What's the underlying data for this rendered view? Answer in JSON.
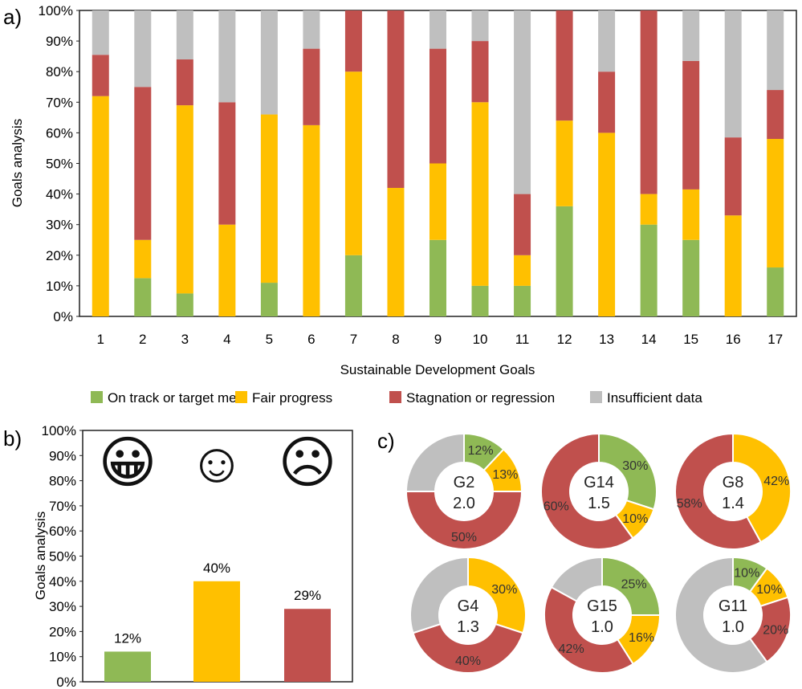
{
  "colors": {
    "on_track": "#8fb955",
    "fair": "#ffc000",
    "stagnation": "#c0504d",
    "insufficient": "#bfbfbf",
    "axis": "#222222"
  },
  "panel_labels": {
    "a": "a)",
    "b": "b)",
    "c": "c)"
  },
  "legend": [
    {
      "name": "On track or target met",
      "color_key": "on_track"
    },
    {
      "name": "Fair progress",
      "color_key": "fair"
    },
    {
      "name": "Stagnation or regression",
      "color_key": "stagnation"
    },
    {
      "name": "Insufficient data",
      "color_key": "insufficient"
    }
  ],
  "chart_data": [
    {
      "id": "a",
      "type": "bar",
      "stacked": true,
      "ylabel": "Goals analysis",
      "xlabel": "Sustainable Development Goals",
      "ylim": [
        0,
        100
      ],
      "yticks": [
        "0%",
        "10%",
        "20%",
        "30%",
        "40%",
        "50%",
        "60%",
        "70%",
        "80%",
        "90%",
        "100%"
      ],
      "categories": [
        "1",
        "2",
        "3",
        "4",
        "5",
        "6",
        "7",
        "8",
        "9",
        "10",
        "11",
        "12",
        "13",
        "14",
        "15",
        "16",
        "17"
      ],
      "series": [
        {
          "name": "On track or target met",
          "values": [
            0,
            12.5,
            7.5,
            0,
            11,
            0,
            20,
            0,
            25,
            10,
            10,
            36,
            0,
            30,
            25,
            0,
            16
          ]
        },
        {
          "name": "Fair progress",
          "values": [
            72,
            12.5,
            61.5,
            30,
            55,
            62.5,
            60,
            42,
            25,
            60,
            10,
            28,
            60,
            10,
            16.5,
            33,
            42
          ]
        },
        {
          "name": "Stagnation or regression",
          "values": [
            13.5,
            50,
            15,
            40,
            0,
            25,
            20,
            58,
            37.5,
            20,
            20,
            36,
            20,
            60,
            42,
            25.5,
            16
          ]
        },
        {
          "name": "Insufficient data",
          "values": [
            14.5,
            25,
            16,
            30,
            34,
            12.5,
            0,
            0,
            12.5,
            10,
            60,
            0,
            20,
            0,
            16.5,
            41.5,
            26
          ]
        }
      ]
    },
    {
      "id": "b",
      "type": "bar",
      "ylabel": "Goals analysis",
      "ylim": [
        0,
        100
      ],
      "yticks": [
        "0%",
        "10%",
        "20%",
        "30%",
        "40%",
        "50%",
        "60%",
        "70%",
        "80%",
        "90%",
        "100%"
      ],
      "categories": [
        "On track or target met",
        "Fair progress",
        "Stagnation or regression"
      ],
      "values": [
        12,
        40,
        29
      ],
      "data_labels": [
        "12%",
        "40%",
        "29%"
      ],
      "icons": [
        "grinning-face-icon",
        "smiling-face-icon",
        "frowning-face-icon"
      ],
      "icon_glyphs": [
        "😀",
        "☺",
        "☹"
      ]
    },
    {
      "id": "c",
      "type": "pie",
      "donut": true,
      "charts": [
        {
          "goal": "G2",
          "score": "2.0",
          "values": [
            12,
            13,
            50,
            25
          ],
          "labels": [
            "12%",
            "13%",
            "50%",
            ""
          ]
        },
        {
          "goal": "G14",
          "score": "1.5",
          "values": [
            30,
            10,
            60,
            0
          ],
          "labels": [
            "30%",
            "10%",
            "60%",
            ""
          ]
        },
        {
          "goal": "G8",
          "score": "1.4",
          "values": [
            0,
            42,
            58,
            0
          ],
          "labels": [
            "",
            "42%",
            "58%",
            ""
          ]
        },
        {
          "goal": "G4",
          "score": "1.3",
          "values": [
            0,
            30,
            40,
            30
          ],
          "labels": [
            "",
            "30%",
            "40%",
            ""
          ]
        },
        {
          "goal": "G15",
          "score": "1.0",
          "values": [
            25,
            16,
            42,
            17
          ],
          "labels": [
            "25%",
            "16%",
            "42%",
            ""
          ]
        },
        {
          "goal": "G11",
          "score": "1.0",
          "values": [
            10,
            10,
            20,
            60
          ],
          "labels": [
            "10%",
            "10%",
            "20%",
            ""
          ]
        }
      ]
    }
  ]
}
